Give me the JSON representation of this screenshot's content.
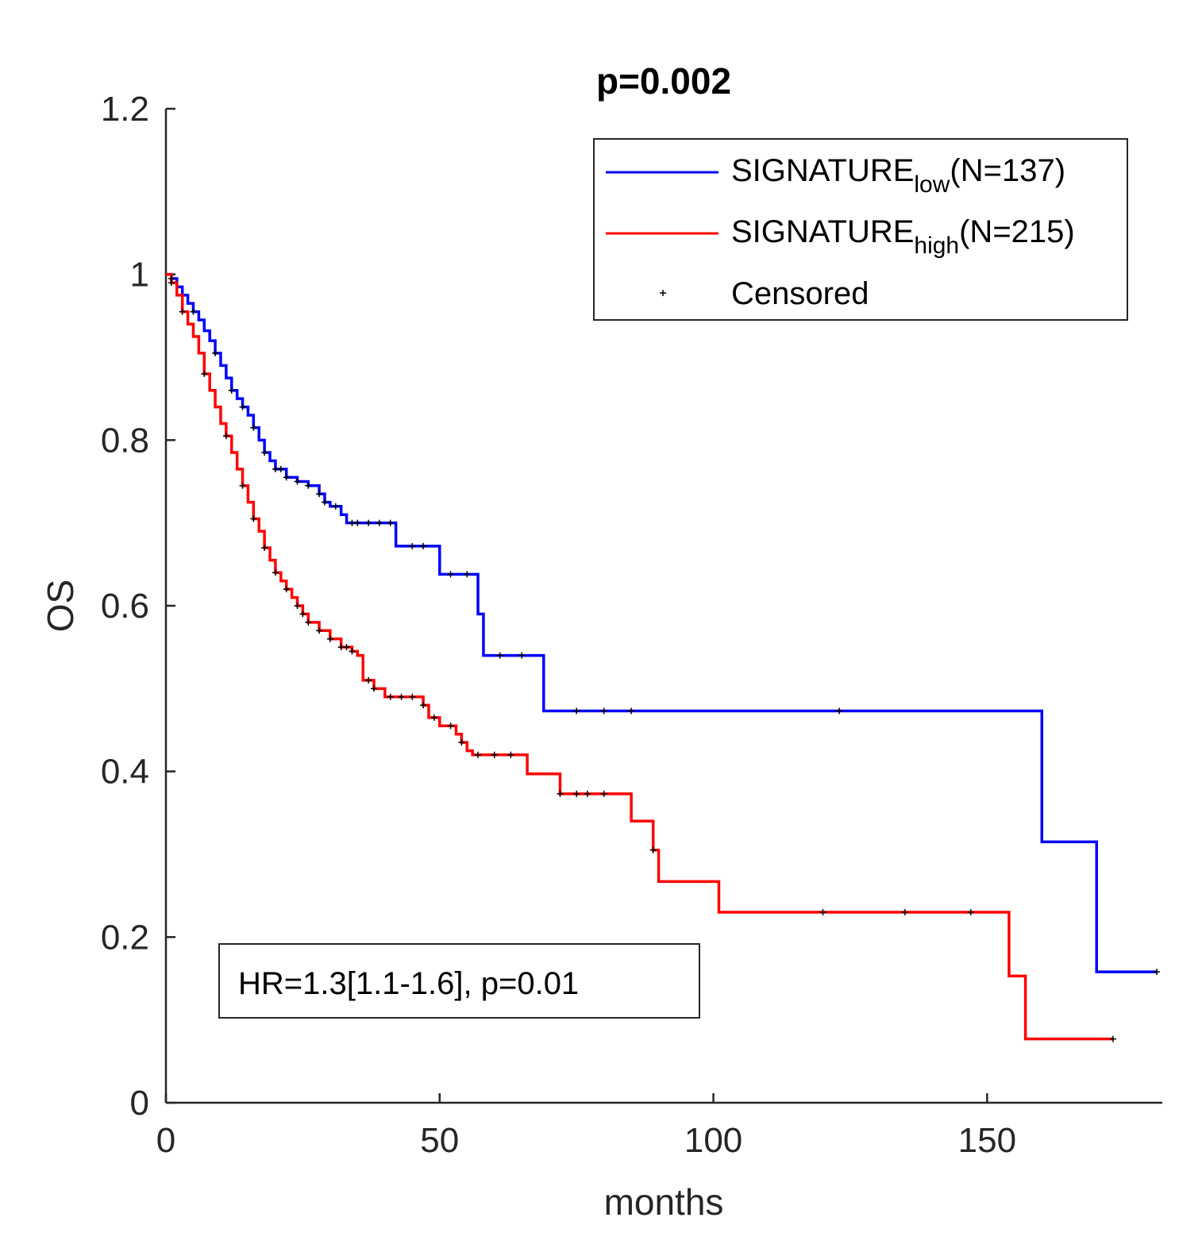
{
  "chart_data": {
    "type": "line",
    "subtype": "kaplan-meier",
    "title": "p=0.002",
    "xlabel": "months",
    "ylabel": "OS",
    "xlim": [
      0,
      182
    ],
    "ylim": [
      0,
      1.2
    ],
    "xticks": [
      0,
      50,
      100,
      150
    ],
    "xtick_labels": [
      "0",
      "50",
      "100",
      "150"
    ],
    "yticks": [
      0,
      0.2,
      0.4,
      0.6,
      0.8,
      1,
      1.2
    ],
    "ytick_labels": [
      "0",
      "0.2",
      "0.4",
      "0.6",
      "0.8",
      "1",
      "1.2"
    ],
    "grid": false,
    "legend_position": "top-right",
    "annotation": "HR=1.3[1.1-1.6], p=0.01",
    "series": [
      {
        "name": "SIGNATURE_low(N=137)",
        "legend_main": "SIGNATURE",
        "legend_sub": "low",
        "legend_suffix": "(N=137)",
        "color": "#0000ff",
        "x": [
          0,
          1,
          2,
          3,
          4,
          5,
          6,
          7,
          8,
          9,
          10,
          11,
          12,
          13,
          14,
          15,
          16,
          17,
          18,
          19,
          20,
          22,
          24,
          26,
          28,
          29,
          30,
          32,
          33,
          40,
          42,
          48,
          50,
          56,
          57,
          58,
          68,
          69,
          159,
          160,
          169,
          170,
          181
        ],
        "y": [
          1.0,
          0.995,
          0.985,
          0.975,
          0.965,
          0.955,
          0.945,
          0.932,
          0.92,
          0.905,
          0.89,
          0.875,
          0.86,
          0.85,
          0.84,
          0.83,
          0.815,
          0.8,
          0.785,
          0.775,
          0.765,
          0.755,
          0.75,
          0.745,
          0.735,
          0.725,
          0.72,
          0.71,
          0.7,
          0.7,
          0.672,
          0.672,
          0.638,
          0.638,
          0.59,
          0.54,
          0.54,
          0.473,
          0.473,
          0.315,
          0.315,
          0.158,
          0.158
        ],
        "censored_x": [
          1,
          5,
          9,
          12,
          14,
          16,
          18,
          20,
          21,
          22,
          24,
          26,
          28,
          29,
          31,
          34,
          35,
          37,
          39,
          41,
          45,
          47,
          52,
          55,
          61,
          65,
          75,
          80,
          85,
          123,
          181
        ]
      },
      {
        "name": "SIGNATURE_high(N=215)",
        "legend_main": "SIGNATURE",
        "legend_sub": "high",
        "legend_suffix": "(N=215)",
        "color": "#ff0000",
        "x": [
          0,
          1,
          2,
          3,
          4,
          5,
          6,
          7,
          8,
          9,
          10,
          11,
          12,
          13,
          14,
          15,
          16,
          17,
          18,
          19,
          20,
          21,
          22,
          23,
          24,
          25,
          26,
          28,
          30,
          32,
          34,
          35,
          36,
          38,
          40,
          47,
          48,
          50,
          53,
          54,
          55,
          56,
          65,
          66,
          71,
          72,
          84,
          85,
          89,
          90,
          100,
          101,
          153,
          154,
          156,
          157,
          173
        ],
        "y": [
          1.0,
          0.99,
          0.975,
          0.955,
          0.94,
          0.925,
          0.905,
          0.88,
          0.86,
          0.84,
          0.82,
          0.805,
          0.785,
          0.765,
          0.745,
          0.725,
          0.705,
          0.69,
          0.67,
          0.655,
          0.64,
          0.63,
          0.62,
          0.61,
          0.6,
          0.59,
          0.58,
          0.57,
          0.56,
          0.55,
          0.545,
          0.54,
          0.51,
          0.5,
          0.49,
          0.48,
          0.465,
          0.455,
          0.445,
          0.435,
          0.425,
          0.42,
          0.42,
          0.397,
          0.397,
          0.373,
          0.373,
          0.34,
          0.305,
          0.267,
          0.267,
          0.23,
          0.23,
          0.153,
          0.153,
          0.077,
          0.077
        ],
        "censored_x": [
          1,
          3,
          7,
          11,
          14,
          16,
          18,
          20,
          22,
          24,
          25,
          26,
          28,
          30,
          32,
          33,
          34,
          37,
          38,
          41,
          43,
          45,
          47,
          49,
          52,
          54,
          57,
          60,
          63,
          72,
          75,
          77,
          80,
          89,
          120,
          135,
          147,
          173
        ]
      }
    ],
    "censored_legend_label": "Censored"
  }
}
